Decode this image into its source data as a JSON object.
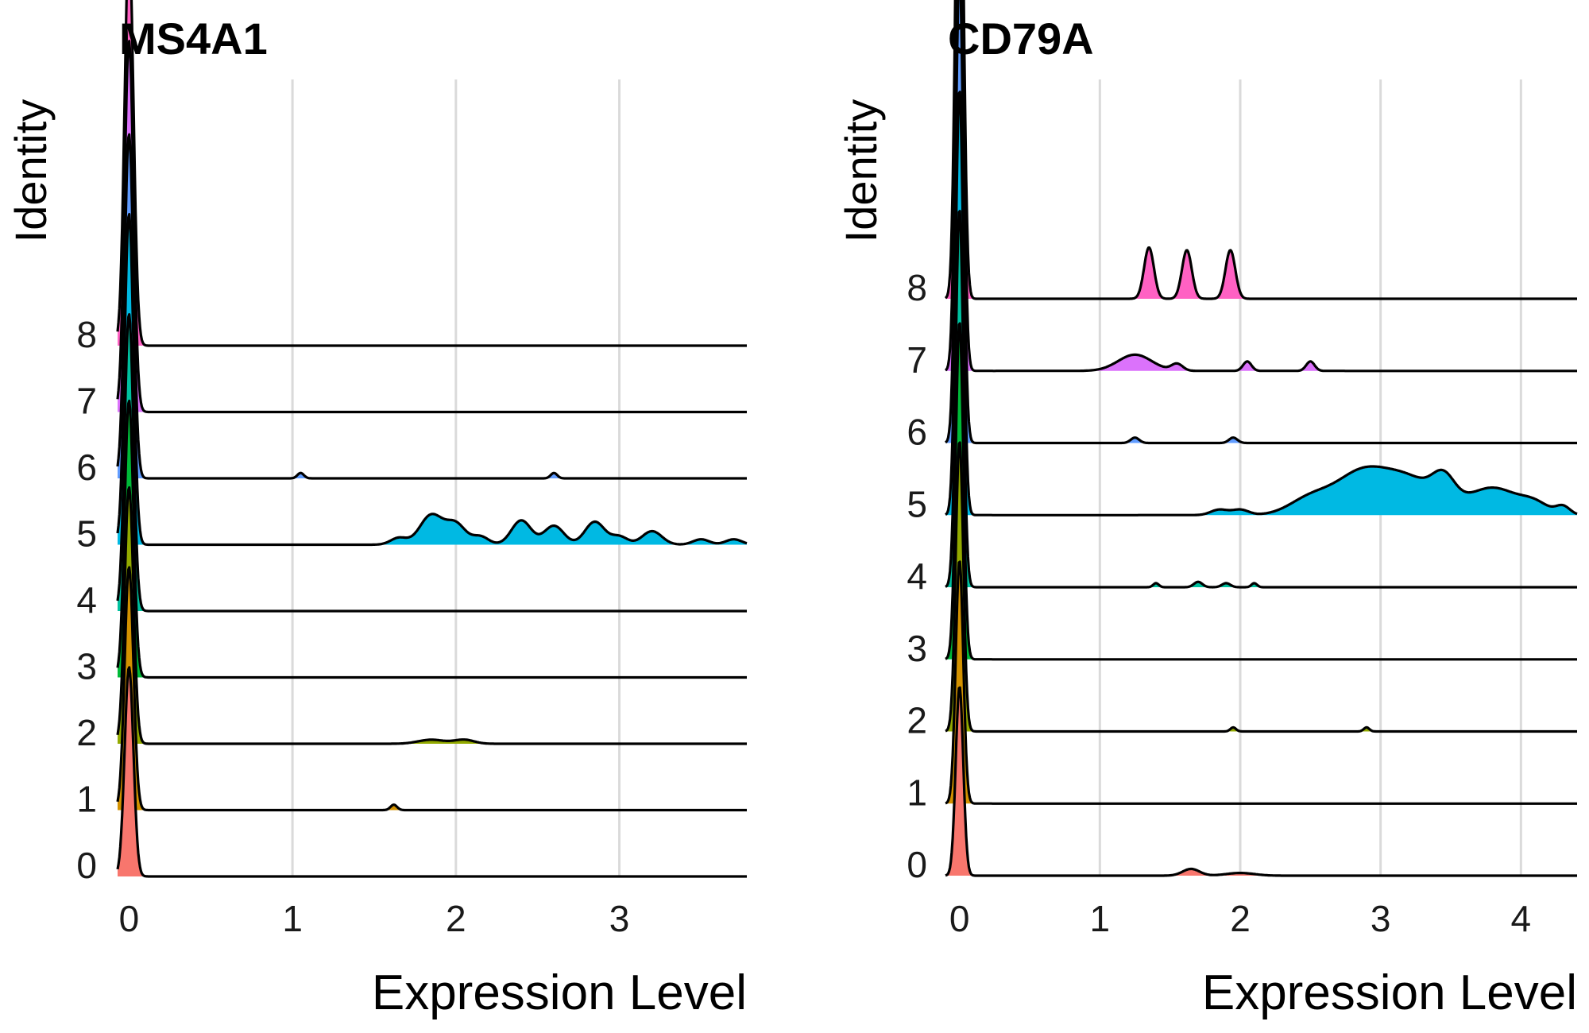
{
  "chart_data": [
    {
      "type": "ridgeline",
      "title": "MS4A1",
      "xlabel": "Expression Level",
      "ylabel": "Identity",
      "xlim": [
        -0.07,
        3.78
      ],
      "xticks": [
        0,
        1,
        2,
        3
      ],
      "grid": true,
      "categories": [
        "0",
        "1",
        "2",
        "3",
        "4",
        "5",
        "6",
        "7",
        "8"
      ],
      "colors": [
        "#F8766D",
        "#D39200",
        "#93AA00",
        "#00BA38",
        "#00C19F",
        "#00B9E3",
        "#619CFF",
        "#DB72FB",
        "#FF61C3"
      ],
      "spike_heights": [
        1.55,
        1.8,
        1.9,
        2.05,
        2.2,
        2.45,
        2.55,
        2.75,
        3.0
      ],
      "ridges": [
        {
          "identity": "0",
          "bumps": []
        },
        {
          "identity": "1",
          "bumps": [
            [
              1.62,
              0.02,
              0.04
            ]
          ]
        },
        {
          "identity": "2",
          "bumps": [
            [
              1.85,
              0.08,
              0.03
            ],
            [
              2.05,
              0.06,
              0.03
            ]
          ]
        },
        {
          "identity": "3",
          "bumps": []
        },
        {
          "identity": "4",
          "bumps": []
        },
        {
          "identity": "5",
          "bumps": [
            [
              1.65,
              0.05,
              0.05
            ],
            [
              1.85,
              0.07,
              0.22
            ],
            [
              2.0,
              0.06,
              0.15
            ],
            [
              2.15,
              0.05,
              0.06
            ],
            [
              2.4,
              0.06,
              0.18
            ],
            [
              2.6,
              0.06,
              0.14
            ],
            [
              2.85,
              0.06,
              0.17
            ],
            [
              3.0,
              0.05,
              0.06
            ],
            [
              3.2,
              0.06,
              0.1
            ],
            [
              3.5,
              0.05,
              0.04
            ],
            [
              3.7,
              0.05,
              0.04
            ]
          ]
        },
        {
          "identity": "6",
          "bumps": [
            [
              1.05,
              0.02,
              0.04
            ],
            [
              2.6,
              0.02,
              0.04
            ]
          ]
        },
        {
          "identity": "7",
          "bumps": []
        },
        {
          "identity": "8",
          "bumps": []
        }
      ]
    },
    {
      "type": "ridgeline",
      "title": "CD79A",
      "xlabel": "Expression Level",
      "ylabel": "Identity",
      "xlim": [
        -0.1,
        4.4
      ],
      "xticks": [
        0,
        1,
        2,
        3,
        4
      ],
      "grid": true,
      "categories": [
        "0",
        "1",
        "2",
        "3",
        "4",
        "5",
        "6",
        "7",
        "8"
      ],
      "colors": [
        "#F8766D",
        "#D39200",
        "#93AA00",
        "#00BA38",
        "#00C19F",
        "#00B9E3",
        "#619CFF",
        "#DB72FB",
        "#FF61C3"
      ],
      "spike_heights": [
        1.4,
        1.8,
        2.15,
        2.5,
        2.8,
        3.15,
        3.5,
        3.8,
        4.25
      ],
      "ridges": [
        {
          "identity": "0",
          "bumps": [
            [
              1.65,
              0.06,
              0.05
            ],
            [
              2.0,
              0.1,
              0.02
            ]
          ]
        },
        {
          "identity": "1",
          "bumps": []
        },
        {
          "identity": "2",
          "bumps": [
            [
              1.95,
              0.02,
              0.03
            ],
            [
              2.9,
              0.02,
              0.03
            ]
          ]
        },
        {
          "identity": "3",
          "bumps": []
        },
        {
          "identity": "4",
          "bumps": [
            [
              1.4,
              0.02,
              0.03
            ],
            [
              1.7,
              0.03,
              0.04
            ],
            [
              1.9,
              0.03,
              0.03
            ],
            [
              2.1,
              0.02,
              0.03
            ]
          ]
        },
        {
          "identity": "5",
          "bumps": [
            [
              1.85,
              0.06,
              0.04
            ],
            [
              2.0,
              0.06,
              0.04
            ],
            [
              2.5,
              0.15,
              0.12
            ],
            [
              2.85,
              0.18,
              0.28
            ],
            [
              3.2,
              0.2,
              0.26
            ],
            [
              3.45,
              0.08,
              0.18
            ],
            [
              3.8,
              0.18,
              0.2
            ],
            [
              4.1,
              0.1,
              0.07
            ],
            [
              4.3,
              0.05,
              0.06
            ]
          ]
        },
        {
          "identity": "6",
          "bumps": [
            [
              1.25,
              0.03,
              0.04
            ],
            [
              1.95,
              0.03,
              0.04
            ]
          ]
        },
        {
          "identity": "7",
          "bumps": [
            [
              1.25,
              0.12,
              0.12
            ],
            [
              1.55,
              0.04,
              0.05
            ],
            [
              2.05,
              0.03,
              0.07
            ],
            [
              2.5,
              0.03,
              0.07
            ]
          ]
        },
        {
          "identity": "8",
          "bumps": [
            [
              1.35,
              0.035,
              0.38
            ],
            [
              1.62,
              0.035,
              0.36
            ],
            [
              1.93,
              0.035,
              0.36
            ]
          ]
        }
      ]
    }
  ]
}
